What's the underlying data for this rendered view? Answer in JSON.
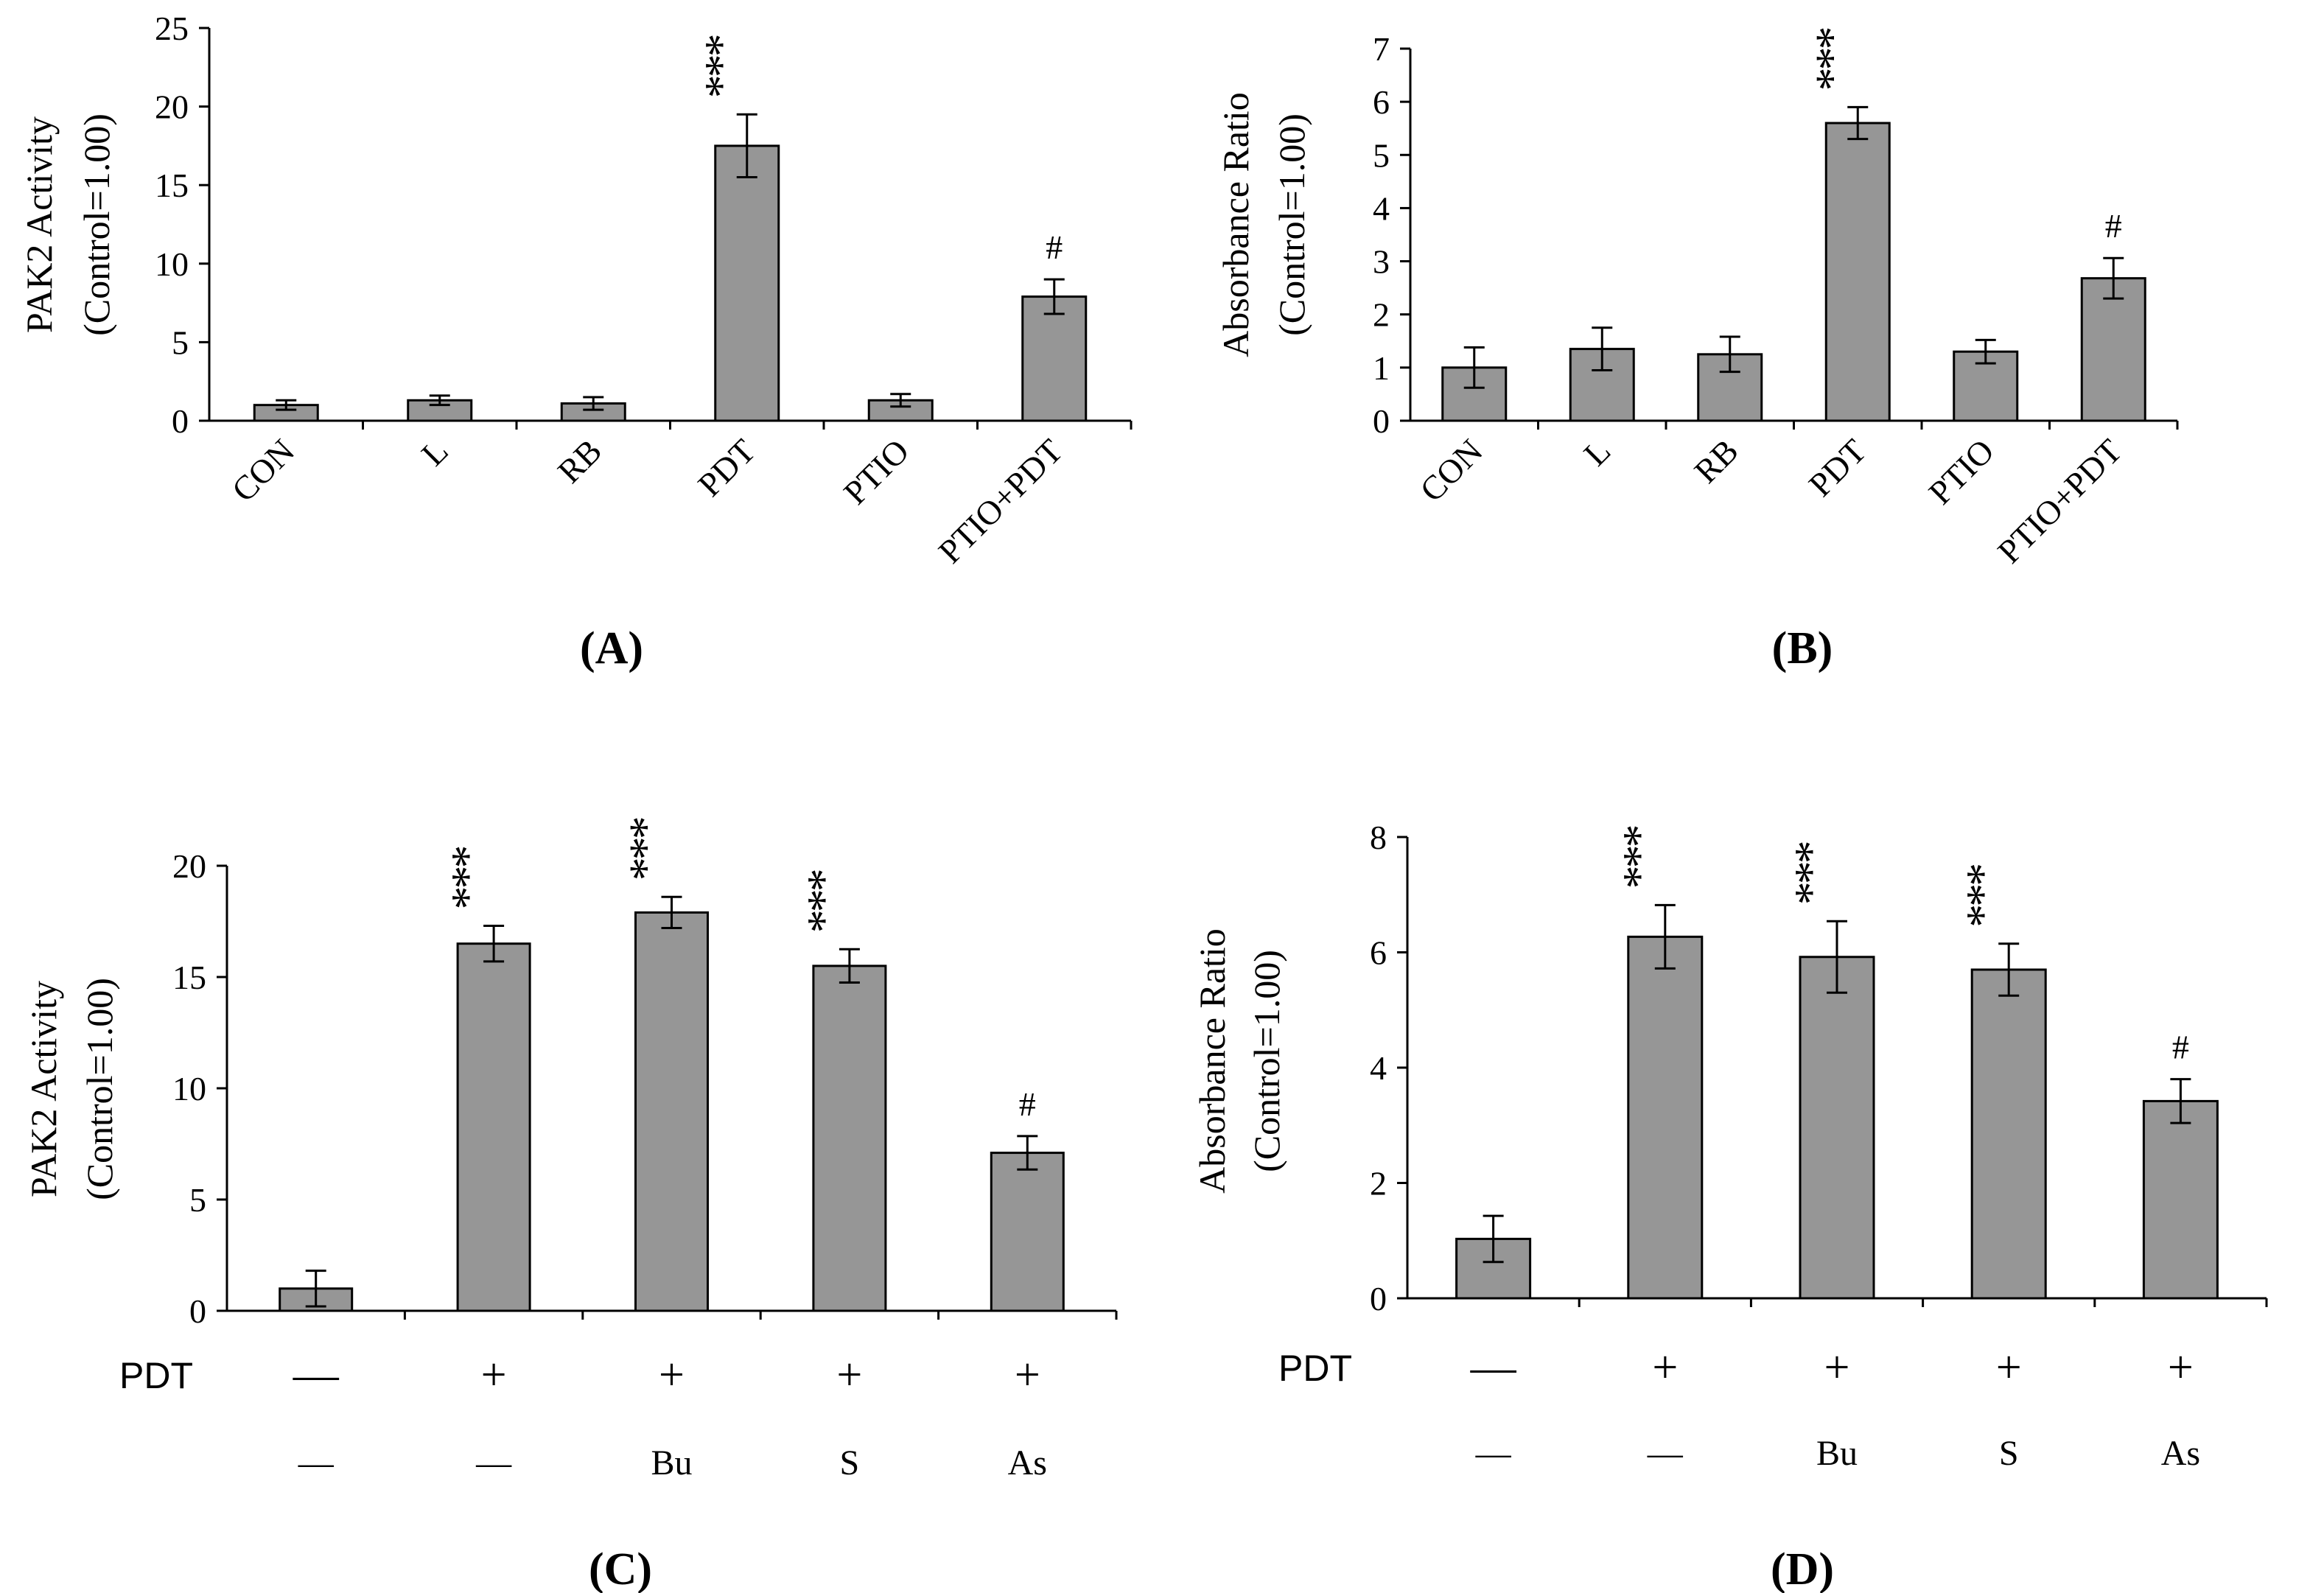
{
  "chart_data": [
    {
      "panel": "A",
      "type": "bar",
      "panel_label": "(A)",
      "ylabel_lines": [
        "PAK2 Activity",
        "(Control=1.00)"
      ],
      "categories": [
        "CON",
        "L",
        "RB",
        "PDT",
        "PTIO",
        "PTIO+PDT"
      ],
      "values": [
        1.0,
        1.3,
        1.1,
        17.5,
        1.3,
        7.9
      ],
      "errors": [
        0.3,
        0.3,
        0.4,
        2.0,
        0.4,
        1.1
      ],
      "annotations": [
        "",
        "",
        "",
        "***",
        "",
        "#"
      ],
      "ylim": [
        0,
        25
      ],
      "yticks": [
        0,
        5,
        10,
        15,
        20,
        25
      ],
      "bar_color": "#969696"
    },
    {
      "panel": "B",
      "type": "bar",
      "panel_label": "(B)",
      "ylabel_lines": [
        "Absorbance Ratio",
        "(Control=1.00)"
      ],
      "categories": [
        "CON",
        "L",
        "RB",
        "PDT",
        "PTIO",
        "PTIO+PDT"
      ],
      "values": [
        1.0,
        1.35,
        1.25,
        5.6,
        1.3,
        2.68
      ],
      "errors": [
        0.38,
        0.4,
        0.33,
        0.3,
        0.22,
        0.38
      ],
      "annotations": [
        "",
        "",
        "",
        "***",
        "",
        "#"
      ],
      "ylim": [
        0,
        7
      ],
      "yticks": [
        0,
        1,
        2,
        3,
        4,
        5,
        6,
        7
      ],
      "bar_color": "#969696"
    },
    {
      "panel": "C",
      "type": "bar",
      "panel_label": "(C)",
      "ylabel_lines": [
        "PAK2 Activity",
        "(Control=1.00)"
      ],
      "row_labels": [
        "PDT",
        ""
      ],
      "row1": [
        "—",
        "+",
        "+",
        "+",
        "+"
      ],
      "row2": [
        "—",
        "—",
        "Bu",
        "S",
        "As"
      ],
      "values": [
        1.0,
        16.5,
        17.9,
        15.5,
        7.1
      ],
      "errors": [
        0.8,
        0.8,
        0.7,
        0.75,
        0.75
      ],
      "annotations": [
        "",
        "***",
        "***",
        "***",
        "#"
      ],
      "ylim": [
        0,
        20
      ],
      "yticks": [
        0,
        5,
        10,
        15,
        20
      ],
      "bar_color": "#969696"
    },
    {
      "panel": "D",
      "type": "bar",
      "panel_label": "(D)",
      "ylabel_lines": [
        "Absorbance Ratio",
        "(Control=1.00)"
      ],
      "row_labels": [
        "PDT",
        ""
      ],
      "row1": [
        "—",
        "+",
        "+",
        "+",
        "+"
      ],
      "row2": [
        "—",
        "—",
        "Bu",
        "S",
        "As"
      ],
      "values": [
        1.03,
        6.27,
        5.92,
        5.7,
        3.42
      ],
      "errors": [
        0.4,
        0.55,
        0.62,
        0.45,
        0.38
      ],
      "annotations": [
        "",
        "***",
        "***",
        "***",
        "#"
      ],
      "ylim": [
        0,
        8
      ],
      "yticks": [
        0,
        2,
        4,
        6,
        8
      ],
      "bar_color": "#969696"
    }
  ]
}
